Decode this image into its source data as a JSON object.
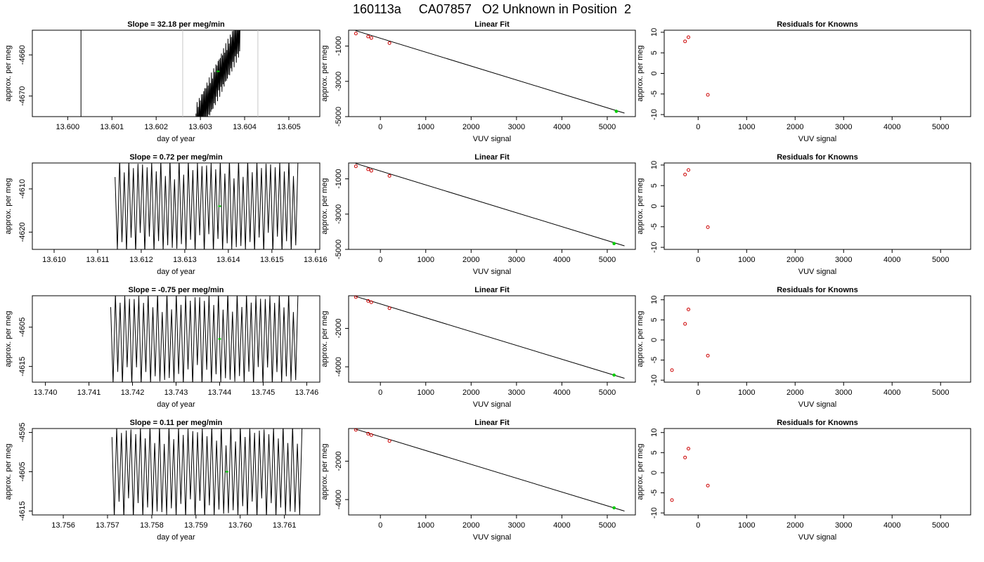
{
  "page_title": "160113a     CA07857   O2 Unknown in Position  2",
  "colors": {
    "trace": "#000000",
    "unknown_point": "#00cc00",
    "known_point": "#cc0000",
    "marker_line": "#c8c8c8"
  },
  "chart_data": [
    {
      "type": "line",
      "title": "Slope =  32.18  per meg/min",
      "xlabel": "day of year",
      "ylabel": "approx. per meg",
      "xlim": [
        13.5992,
        13.6057
      ],
      "ylim": [
        -4675,
        -4654
      ],
      "xticks": [
        "13.600",
        "13.601",
        "13.602",
        "13.603",
        "13.604",
        "13.605"
      ],
      "yticks": [
        "-4660",
        "-4670"
      ],
      "markers": [
        13.6026,
        13.6043
      ],
      "start_line": 13.6003,
      "trace_x": [
        13.6029,
        13.6039
      ],
      "trace_y": [
        -4677,
        -4655
      ],
      "noise": 5,
      "unknown_point": [
        13.6034,
        -4664
      ]
    },
    {
      "type": "line",
      "title": "Linear Fit",
      "xlabel": "VUV signal",
      "ylabel": "approx. per meg",
      "xlim": [
        -700,
        5620
      ],
      "ylim": [
        -5000,
        -100
      ],
      "xticks": [
        "0",
        "1000",
        "2000",
        "3000",
        "4000",
        "5000"
      ],
      "yticks": [
        "-1000",
        "-3000",
        "-5000"
      ],
      "fit_line": [
        [
          -550,
          -120
        ],
        [
          5380,
          -4800
        ]
      ],
      "knowns": [
        [
          -540,
          -290
        ],
        [
          -270,
          -460
        ],
        [
          -200,
          -540
        ],
        [
          200,
          -830
        ]
      ],
      "unknown": [
        5200,
        -4700
      ]
    },
    {
      "type": "scatter",
      "title": "Residuals for Knowns",
      "xlabel": "VUV signal",
      "ylabel": "approx. per meg",
      "xlim": [
        -700,
        5620
      ],
      "ylim": [
        -10.5,
        10.5
      ],
      "xticks": [
        "0",
        "1000",
        "2000",
        "3000",
        "4000",
        "5000"
      ],
      "yticks": [
        "10",
        "5",
        "0",
        "-5",
        "-10"
      ],
      "points": [
        [
          -270,
          7.8
        ],
        [
          -200,
          8.8
        ],
        [
          200,
          -5.2
        ]
      ]
    },
    {
      "type": "line",
      "title": "Slope =  0.72  per meg/min",
      "xlabel": "day of year",
      "ylabel": "approx. per meg",
      "xlim": [
        13.6095,
        13.6161
      ],
      "ylim": [
        -4624,
        -4604
      ],
      "xticks": [
        "13.610",
        "13.611",
        "13.612",
        "13.613",
        "13.614",
        "13.615",
        "13.616"
      ],
      "yticks": [
        "-4610",
        "-4620"
      ],
      "markers": [],
      "trace_x": [
        13.6114,
        13.6156
      ],
      "trace_y": [
        -4614,
        -4614
      ],
      "noise": 11,
      "unknown_point": [
        13.6138,
        -4614
      ]
    },
    {
      "type": "line",
      "title": "Linear Fit",
      "xlabel": "VUV signal",
      "ylabel": "approx. per meg",
      "xlim": [
        -700,
        5620
      ],
      "ylim": [
        -5000,
        -100
      ],
      "xticks": [
        "0",
        "1000",
        "2000",
        "3000",
        "4000",
        "5000"
      ],
      "yticks": [
        "-1000",
        "-3000",
        "-5000"
      ],
      "fit_line": [
        [
          -550,
          -120
        ],
        [
          5380,
          -4800
        ]
      ],
      "knowns": [
        [
          -540,
          -290
        ],
        [
          -270,
          -460
        ],
        [
          -200,
          -540
        ],
        [
          200,
          -830
        ]
      ],
      "unknown": [
        5150,
        -4670
      ]
    },
    {
      "type": "scatter",
      "title": "Residuals for Knowns",
      "xlabel": "VUV signal",
      "ylabel": "approx. per meg",
      "xlim": [
        -700,
        5620
      ],
      "ylim": [
        -10.5,
        10.5
      ],
      "xticks": [
        "0",
        "1000",
        "2000",
        "3000",
        "4000",
        "5000"
      ],
      "yticks": [
        "10",
        "5",
        "0",
        "-5",
        "-10"
      ],
      "points": [
        [
          -270,
          7.7
        ],
        [
          -200,
          8.8
        ],
        [
          200,
          -5.1
        ]
      ]
    },
    {
      "type": "line",
      "title": "Slope =  -0.75  per meg/min",
      "xlabel": "day of year",
      "ylabel": "approx. per meg",
      "xlim": [
        13.7397,
        13.7463
      ],
      "ylim": [
        -4619,
        -4597
      ],
      "xticks": [
        "13.740",
        "13.741",
        "13.742",
        "13.743",
        "13.744",
        "13.745",
        "13.746"
      ],
      "yticks": [
        "-4605",
        "-4615"
      ],
      "markers": [],
      "trace_x": [
        13.7415,
        13.7458
      ],
      "trace_y": [
        -4608,
        -4608
      ],
      "noise": 12,
      "unknown_point": [
        13.744,
        -4608
      ]
    },
    {
      "type": "line",
      "title": "Linear Fit",
      "xlabel": "VUV signal",
      "ylabel": "approx. per meg",
      "xlim": [
        -700,
        5620
      ],
      "ylim": [
        -4800,
        -300
      ],
      "xticks": [
        "0",
        "1000",
        "2000",
        "3000",
        "4000",
        "5000"
      ],
      "yticks": [
        "-2000",
        "-4000"
      ],
      "fit_line": [
        [
          -550,
          -330
        ],
        [
          5380,
          -4600
        ]
      ],
      "knowns": [
        [
          -540,
          -370
        ],
        [
          -270,
          -570
        ],
        [
          -200,
          -640
        ],
        [
          200,
          -950
        ]
      ],
      "unknown": [
        5150,
        -4430
      ]
    },
    {
      "type": "scatter",
      "title": "Residuals for Knowns",
      "xlabel": "VUV signal",
      "ylabel": "approx. per meg",
      "xlim": [
        -700,
        5620
      ],
      "ylim": [
        -10.5,
        11
      ],
      "xticks": [
        "0",
        "1000",
        "2000",
        "3000",
        "4000",
        "5000"
      ],
      "yticks": [
        "10",
        "5",
        "0",
        "-5",
        "-10"
      ],
      "points": [
        [
          -540,
          -7.5
        ],
        [
          -270,
          4.0
        ],
        [
          -200,
          7.6
        ],
        [
          200,
          -3.9
        ]
      ]
    },
    {
      "type": "line",
      "title": "Slope =  0.11  per meg/min",
      "xlabel": "day of year",
      "ylabel": "approx. per meg",
      "xlim": [
        13.7553,
        13.7618
      ],
      "ylim": [
        -4616,
        -4594
      ],
      "xticks": [
        "13.756",
        "13.757",
        "13.758",
        "13.759",
        "13.760",
        "13.761"
      ],
      "yticks": [
        "-4595",
        "-4605",
        "-4615"
      ],
      "markers": [],
      "trace_x": [
        13.7571,
        13.7614
      ],
      "trace_y": [
        -4605,
        -4605
      ],
      "noise": 12,
      "unknown_point": [
        13.7597,
        -4605
      ]
    },
    {
      "type": "line",
      "title": "Linear Fit",
      "xlabel": "VUV signal",
      "ylabel": "approx. per meg",
      "xlim": [
        -700,
        5620
      ],
      "ylim": [
        -4800,
        -300
      ],
      "xticks": [
        "0",
        "1000",
        "2000",
        "3000",
        "4000",
        "5000"
      ],
      "yticks": [
        "-2000",
        "-4000"
      ],
      "fit_line": [
        [
          -550,
          -330
        ],
        [
          5380,
          -4600
        ]
      ],
      "knowns": [
        [
          -540,
          -370
        ],
        [
          -270,
          -570
        ],
        [
          -200,
          -640
        ],
        [
          200,
          -950
        ]
      ],
      "unknown": [
        5150,
        -4430
      ]
    },
    {
      "type": "scatter",
      "title": "Residuals for Knowns",
      "xlabel": "VUV signal",
      "ylabel": "approx. per meg",
      "xlim": [
        -700,
        5620
      ],
      "ylim": [
        -10.5,
        11
      ],
      "xticks": [
        "0",
        "1000",
        "2000",
        "3000",
        "4000",
        "5000"
      ],
      "yticks": [
        "10",
        "5",
        "0",
        "-5",
        "-10"
      ],
      "points": [
        [
          -540,
          -6.8
        ],
        [
          -270,
          3.8
        ],
        [
          -200,
          6.0
        ],
        [
          200,
          -3.2
        ]
      ]
    }
  ]
}
